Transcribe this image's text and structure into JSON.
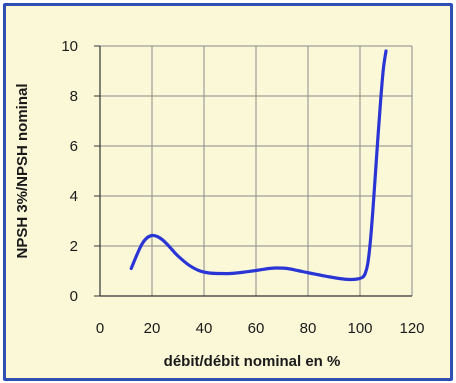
{
  "chart_data": {
    "type": "line",
    "title": "",
    "xlabel": "débit/débit nominal en %",
    "ylabel": "NPSH 3%/NPSH nominal",
    "xlim": [
      0,
      120
    ],
    "ylim": [
      0,
      10
    ],
    "x_ticks": [
      "0",
      "20",
      "40",
      "60",
      "80",
      "100",
      "120"
    ],
    "y_ticks": [
      "0",
      "2",
      "4",
      "6",
      "8",
      "10"
    ],
    "grid": true,
    "colors": {
      "series": "#2a35d6",
      "frame": "#2f4fb3",
      "background": "#fbf8d8",
      "grid": "#8a8a8a"
    },
    "series": [
      {
        "x": [
          12,
          14,
          16,
          18,
          20,
          22,
          24,
          26,
          28,
          30,
          34,
          38,
          42,
          46,
          50,
          55,
          60,
          65,
          68,
          72,
          76,
          80,
          84,
          88,
          92,
          96,
          99,
          101,
          102,
          103,
          104,
          105,
          106,
          107,
          108,
          109,
          110
        ],
        "y": [
          1.1,
          1.6,
          2.05,
          2.32,
          2.42,
          2.38,
          2.25,
          2.05,
          1.82,
          1.6,
          1.25,
          1.02,
          0.92,
          0.9,
          0.9,
          0.95,
          1.02,
          1.1,
          1.12,
          1.1,
          1.02,
          0.93,
          0.85,
          0.77,
          0.7,
          0.66,
          0.68,
          0.75,
          0.9,
          1.3,
          2.2,
          3.5,
          5.0,
          6.5,
          7.9,
          9.1,
          9.8
        ]
      }
    ]
  }
}
